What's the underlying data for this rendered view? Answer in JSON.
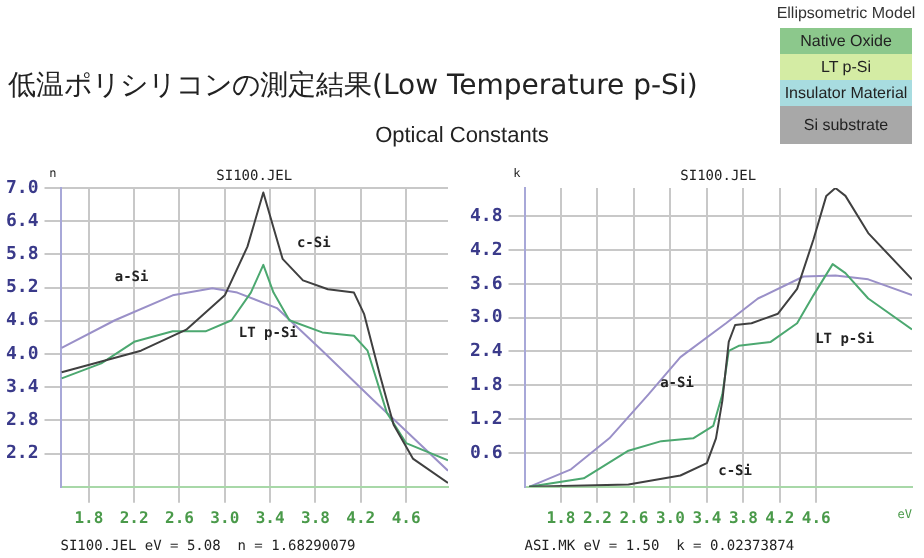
{
  "chart_data": [
    {
      "type": "line",
      "title": "低温ポリシリコンの測定結果(Low Temperature p-Si)",
      "subtitle": "Optical Constants",
      "ylabel": "n",
      "xlim": [
        1.55,
        4.97
      ],
      "ylim": [
        1.6,
        7.0
      ],
      "xticks": [
        1.8,
        2.2,
        2.6,
        {
          "value": 3,
          "label": "3.0"
        },
        3.4,
        3.8,
        4.2,
        4.6
      ],
      "yticks": [
        2.2,
        2.8,
        3.4,
        {
          "value": 4,
          "label": "4.0"
        },
        4.6,
        5.2,
        5.8,
        6.4,
        {
          "value": 7,
          "label": "7.0"
        }
      ],
      "grid": true,
      "legend": false,
      "marker": "none",
      "series": [
        {
          "name": "c-Si",
          "color": "#404040",
          "x": [
            1.56,
            2.26,
            2.66,
            3.0,
            3.2,
            3.34,
            3.43,
            3.51,
            3.69,
            3.91,
            4.14,
            4.23,
            4.37,
            4.49,
            4.66,
            4.97
          ],
          "values": [
            3.67,
            4.06,
            4.44,
            5.06,
            5.94,
            6.92,
            6.28,
            5.72,
            5.33,
            5.17,
            5.11,
            4.72,
            3.61,
            2.72,
            2.11,
            1.67
          ]
        },
        {
          "name": "LT p-Si",
          "color": "#4ca870",
          "x": [
            1.56,
            1.91,
            2.2,
            2.54,
            2.83,
            3.06,
            3.23,
            3.34,
            3.43,
            3.57,
            3.86,
            4.14,
            4.26,
            4.43,
            4.6,
            4.97
          ],
          "values": [
            3.56,
            3.83,
            4.22,
            4.41,
            4.41,
            4.61,
            5.11,
            5.61,
            5.11,
            4.61,
            4.39,
            4.33,
            4.06,
            2.94,
            2.39,
            2.08
          ]
        },
        {
          "name": "a-Si",
          "color": "#9a90c8",
          "x": [
            1.56,
            2.03,
            2.54,
            2.89,
            3.11,
            3.46,
            3.86,
            4.31,
            4.6,
            4.97
          ],
          "values": [
            4.11,
            4.61,
            5.06,
            5.19,
            5.11,
            4.83,
            4.06,
            3.17,
            2.61,
            1.89
          ]
        }
      ],
      "annotations": [
        "SI100.JEL",
        "SI100.JEL eV = 5.08  n = 1.68290079"
      ]
    },
    {
      "type": "line",
      "ylabel": "k",
      "xlabel": "eV",
      "xlim": [
        1.4,
        5.65
      ],
      "ylim": [
        0,
        5.3
      ],
      "xticks": [
        1.8,
        2.2,
        2.6,
        {
          "value": 3,
          "label": "3.0"
        },
        3.4,
        3.8,
        4.2,
        4.6
      ],
      "yticks": [
        0.6,
        1.2,
        1.8,
        2.4,
        {
          "value": 3,
          "label": "3.0"
        },
        3.6,
        4.2,
        4.8
      ],
      "grid": true,
      "legend": false,
      "marker": "none",
      "series": [
        {
          "name": "c-Si",
          "color": "#404040",
          "x": [
            1.45,
            2.54,
            3.11,
            3.4,
            3.5,
            3.57,
            3.64,
            3.71,
            3.89,
            4.18,
            4.39,
            4.57,
            4.71,
            4.81,
            4.92,
            5.17,
            5.65
          ],
          "values": [
            0.0,
            0.04,
            0.2,
            0.42,
            0.86,
            1.53,
            2.57,
            2.87,
            2.9,
            3.07,
            3.51,
            4.39,
            5.16,
            5.3,
            5.16,
            4.5,
            3.68
          ]
        },
        {
          "name": "LT p-Si",
          "color": "#4ca870",
          "x": [
            1.45,
            2.05,
            2.54,
            2.9,
            3.25,
            3.47,
            3.57,
            3.64,
            3.75,
            4.1,
            4.39,
            4.57,
            4.78,
            4.92,
            5.17,
            5.65
          ],
          "values": [
            0.0,
            0.15,
            0.64,
            0.81,
            0.86,
            1.08,
            1.64,
            2.41,
            2.5,
            2.57,
            2.9,
            3.4,
            3.95,
            3.79,
            3.34,
            2.79
          ]
        },
        {
          "name": "a-Si",
          "color": "#9a90c8",
          "x": [
            1.45,
            1.91,
            2.33,
            2.76,
            3.11,
            3.61,
            3.96,
            4.46,
            4.81,
            5.17,
            5.65
          ],
          "values": [
            0.0,
            0.31,
            0.86,
            1.64,
            2.3,
            2.9,
            3.34,
            3.73,
            3.75,
            3.68,
            3.4
          ]
        }
      ],
      "annotations": [
        "SI100.JEL",
        "ASI.MK eV = 1.50  k = 0.02373874"
      ]
    },
    {
      "type": "other",
      "title": "Ellipsometric Model",
      "annotations": [
        "Native Oxide",
        "LT p-Si",
        "Insulator Material",
        "Si substrate"
      ],
      "colors": [
        "#8cc88c",
        "#d4eca4",
        "#a8dce0",
        "#a8a8a8"
      ]
    }
  ]
}
